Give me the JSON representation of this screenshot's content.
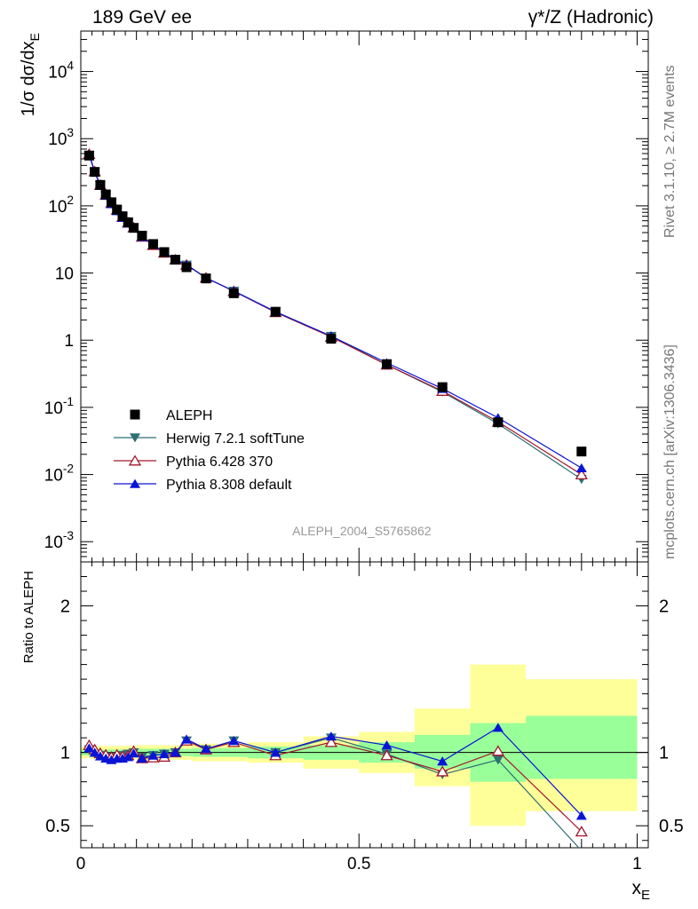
{
  "header": {
    "left_title": "189 GeV ee",
    "right_title": "γ*/Z (Hadronic)"
  },
  "side_labels": {
    "rivet": "Rivet 3.1.10, ≥ 2.7M events",
    "mcplots": "mcplots.cern.ch [arXiv:1306.3436]"
  },
  "analysis_id": "ALEPH_2004_S5765862",
  "chart_data": [
    {
      "panel": "main",
      "type": "scatter",
      "ylabel": "1/σ dσ/dx_E",
      "yscale": "log",
      "ylim": [
        0.0005,
        40000
      ],
      "xlim": [
        0,
        1.02
      ],
      "y_tick_labels": [
        "10^-3",
        "10^-2",
        "10^-1",
        "1",
        "10",
        "10^2",
        "10^3",
        "10^4"
      ],
      "x": [
        0.015,
        0.025,
        0.035,
        0.045,
        0.055,
        0.065,
        0.075,
        0.085,
        0.095,
        0.11,
        0.13,
        0.15,
        0.17,
        0.19,
        0.225,
        0.275,
        0.35,
        0.45,
        0.55,
        0.65,
        0.75,
        0.9
      ],
      "series": [
        {
          "name": "ALEPH",
          "marker": "square",
          "color": "#000000",
          "values": [
            560,
            320,
            205,
            148,
            113,
            88,
            70,
            57,
            47,
            36,
            27,
            20.5,
            15.8,
            12.2,
            8.3,
            5.0,
            2.65,
            1.05,
            0.44,
            0.2,
            0.06,
            0.022
          ]
        },
        {
          "name": "Herwig 7.2.1 softTune",
          "marker": "triangle-down",
          "color": "#2f6e73",
          "values": [
            570,
            318,
            200,
            142,
            108,
            84,
            68,
            55,
            47,
            35,
            26.5,
            20.3,
            15.9,
            13.2,
            8.4,
            5.4,
            2.65,
            1.15,
            0.43,
            0.17,
            0.057,
            0.0085
          ]
        },
        {
          "name": "Pythia 6.428 370",
          "marker": "triangle-open",
          "color": "#a3172c",
          "values": [
            590,
            325,
            204,
            146,
            110,
            87,
            68,
            56,
            47.5,
            34.5,
            26,
            20,
            15.8,
            13.2,
            8.5,
            5.35,
            2.6,
            1.12,
            0.43,
            0.175,
            0.061,
            0.01
          ]
        },
        {
          "name": "Pythia 8.308 default",
          "marker": "triangle-up",
          "color": "#0a14d6",
          "values": [
            575,
            320,
            200,
            142,
            107,
            84,
            67,
            55,
            47,
            34.5,
            26.5,
            20.2,
            15.9,
            13.3,
            8.5,
            5.4,
            2.65,
            1.15,
            0.46,
            0.19,
            0.07,
            0.0125
          ]
        }
      ]
    },
    {
      "panel": "ratio",
      "type": "line",
      "ylabel": "Ratio to ALEPH",
      "xlabel": "x_E",
      "ylim": [
        0.35,
        2.3
      ],
      "xlim": [
        0,
        1.02
      ],
      "y_tick_labels": [
        "0.5",
        "1",
        "2"
      ],
      "x_tick_labels": [
        "0",
        "0.5",
        "1"
      ],
      "colors": {
        "band_outer": "#ffff99",
        "band_inner": "#99ff99"
      },
      "uncertainty_bands": [
        {
          "x_range": [
            0.0,
            0.02
          ],
          "inner": [
            0.98,
            1.02
          ],
          "outer": [
            0.96,
            1.04
          ]
        },
        {
          "x_range": [
            0.02,
            0.1
          ],
          "inner": [
            0.98,
            1.02
          ],
          "outer": [
            0.955,
            1.045
          ]
        },
        {
          "x_range": [
            0.1,
            0.2
          ],
          "inner": [
            0.975,
            1.025
          ],
          "outer": [
            0.95,
            1.05
          ]
        },
        {
          "x_range": [
            0.2,
            0.3
          ],
          "inner": [
            0.97,
            1.03
          ],
          "outer": [
            0.94,
            1.06
          ]
        },
        {
          "x_range": [
            0.3,
            0.4
          ],
          "inner": [
            0.96,
            1.04
          ],
          "outer": [
            0.93,
            1.07
          ]
        },
        {
          "x_range": [
            0.4,
            0.5
          ],
          "inner": [
            0.95,
            1.05
          ],
          "outer": [
            0.89,
            1.11
          ]
        },
        {
          "x_range": [
            0.5,
            0.6
          ],
          "inner": [
            0.93,
            1.07
          ],
          "outer": [
            0.86,
            1.14
          ]
        },
        {
          "x_range": [
            0.6,
            0.7
          ],
          "inner": [
            0.89,
            1.12
          ],
          "outer": [
            0.77,
            1.3
          ]
        },
        {
          "x_range": [
            0.7,
            0.8
          ],
          "inner": [
            0.8,
            1.2
          ],
          "outer": [
            0.5,
            1.6
          ]
        },
        {
          "x_range": [
            0.8,
            1.0
          ],
          "inner": [
            0.82,
            1.25
          ],
          "outer": [
            0.6,
            1.5
          ]
        }
      ],
      "x": [
        0.015,
        0.025,
        0.035,
        0.045,
        0.055,
        0.065,
        0.075,
        0.085,
        0.095,
        0.11,
        0.13,
        0.15,
        0.17,
        0.19,
        0.225,
        0.275,
        0.35,
        0.45,
        0.55,
        0.65,
        0.75,
        0.9
      ],
      "series": [
        {
          "name": "Herwig 7.2.1 softTune",
          "marker": "triangle-down",
          "color": "#2f6e73",
          "values": [
            1.02,
            0.99,
            0.98,
            0.97,
            0.96,
            0.97,
            0.98,
            0.99,
            1.0,
            0.97,
            0.98,
            0.99,
            1.0,
            1.08,
            1.02,
            1.08,
            1.0,
            1.1,
            0.99,
            0.85,
            0.95,
            0.33
          ]
        },
        {
          "name": "Pythia 6.428 370",
          "marker": "triangle-open",
          "color": "#a3172c",
          "values": [
            1.05,
            1.02,
            0.995,
            0.985,
            0.97,
            0.985,
            0.975,
            0.98,
            1.01,
            0.96,
            0.965,
            0.97,
            1.0,
            1.08,
            1.02,
            1.07,
            0.98,
            1.07,
            0.98,
            0.87,
            1.01,
            0.46
          ]
        },
        {
          "name": "Pythia 8.308 default",
          "marker": "triangle-up",
          "color": "#0a14d6",
          "values": [
            1.03,
            1.0,
            0.975,
            0.96,
            0.95,
            0.96,
            0.96,
            0.97,
            0.995,
            0.96,
            0.98,
            0.99,
            1.0,
            1.09,
            1.025,
            1.08,
            1.0,
            1.11,
            1.05,
            0.94,
            1.17,
            0.57
          ]
        }
      ]
    }
  ]
}
